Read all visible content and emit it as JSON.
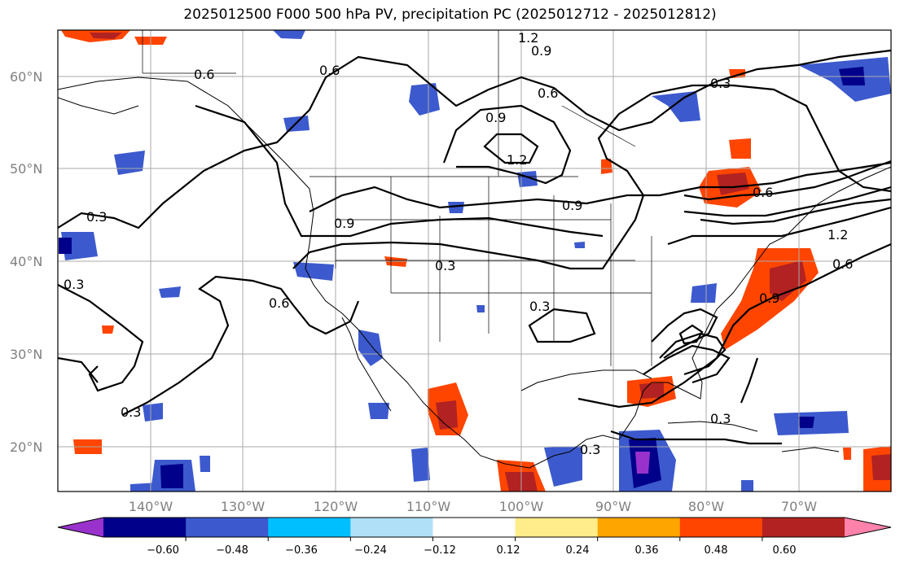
{
  "title": "2025012500 F000 500 hPa PV, precipitation PC (2025012712 - 2025012812)",
  "lat_labels": [
    "60°N",
    "50°N",
    "40°N",
    "30°N",
    "20°N"
  ],
  "lon_labels": [
    "140°W",
    "130°W",
    "120°W",
    "110°W",
    "100°W",
    "90°W",
    "80°W",
    "70°W"
  ],
  "contour_labels": [
    "1.2",
    "0.9",
    "0.6",
    "0.6",
    "0.3",
    "0.9",
    "1.2",
    "0.6",
    "0.9",
    "0.9",
    "0.6",
    "0.3",
    "0.3",
    "0.3",
    "0.6",
    "0.3",
    "1.2",
    "0.6",
    "0.9",
    "0.3",
    "0.3",
    "0.3"
  ],
  "colorbar": {
    "tick_labels": [
      "−0.60",
      "−0.48",
      "−0.36",
      "−0.24",
      "−0.12",
      "0.12",
      "0.24",
      "0.36",
      "0.48",
      "0.60"
    ],
    "colors": [
      "#9932cc",
      "#00008b",
      "#3c5acd",
      "#00bfff",
      "#b0e0f8",
      "#ffffff",
      "#ffec8b",
      "#ffa500",
      "#ff4500",
      "#b22222",
      "#ff82ab"
    ]
  },
  "map": {
    "lat_range": [
      15,
      65
    ],
    "lon_range": [
      -150,
      -60
    ],
    "grid": true,
    "field": "500 hPa PV contours (0.3 interval) with precipitation PC shading"
  }
}
